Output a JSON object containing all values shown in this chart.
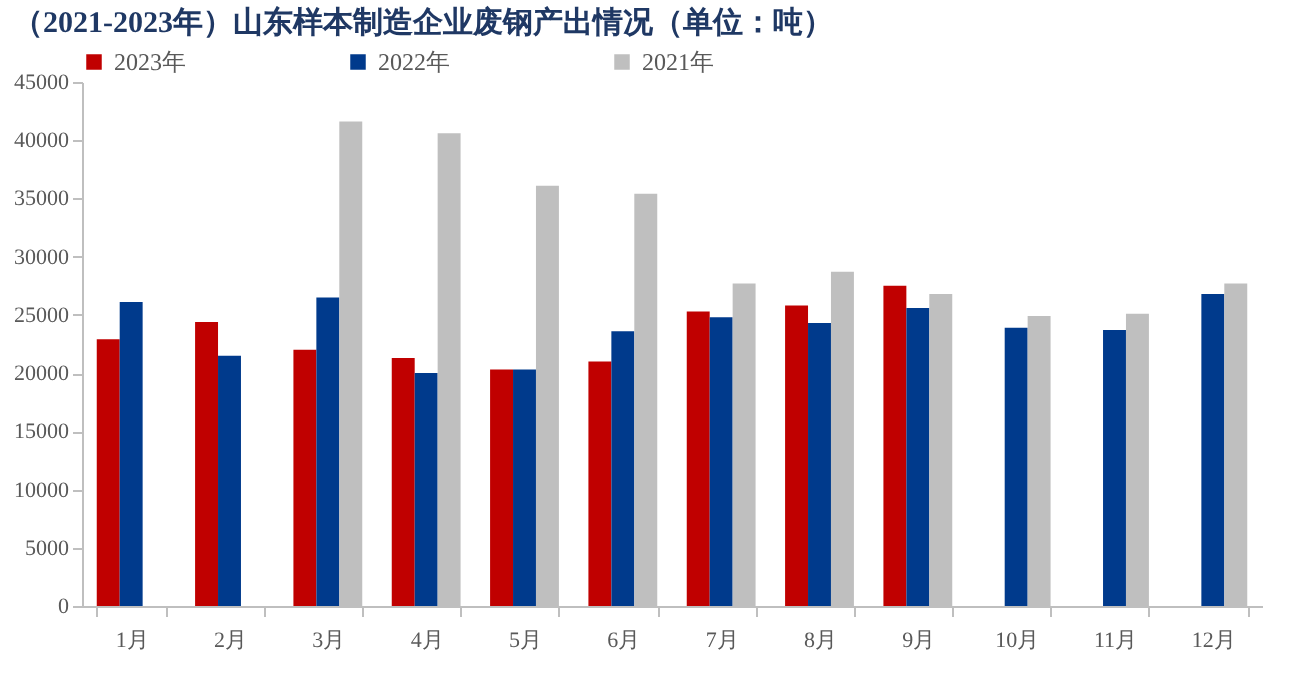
{
  "chart_data": {
    "type": "bar",
    "title": "（2021-2023年）山东样本制造企业废钢产出情况（单位：吨）",
    "categories": [
      "1月",
      "2月",
      "3月",
      "4月",
      "5月",
      "6月",
      "7月",
      "8月",
      "9月",
      "10月",
      "11月",
      "12月"
    ],
    "series": [
      {
        "name": "2023年",
        "color": "#c00000",
        "values": [
          22900,
          24400,
          22000,
          21300,
          20300,
          21000,
          25300,
          25800,
          27500,
          null,
          null,
          null
        ]
      },
      {
        "name": "2022年",
        "color": "#003a8c",
        "values": [
          26100,
          21500,
          26500,
          20000,
          20300,
          23600,
          24800,
          24300,
          25600,
          23900,
          23700,
          26800
        ]
      },
      {
        "name": "2021年",
        "color": "#bfbfbf",
        "values": [
          null,
          null,
          41600,
          40600,
          36100,
          35400,
          27700,
          28700,
          26800,
          24900,
          25100,
          27700
        ]
      }
    ],
    "ylim": [
      0,
      45000
    ],
    "yticks": [
      0,
      5000,
      10000,
      15000,
      20000,
      25000,
      30000,
      35000,
      40000,
      45000
    ],
    "grid": false,
    "legend": "top"
  }
}
